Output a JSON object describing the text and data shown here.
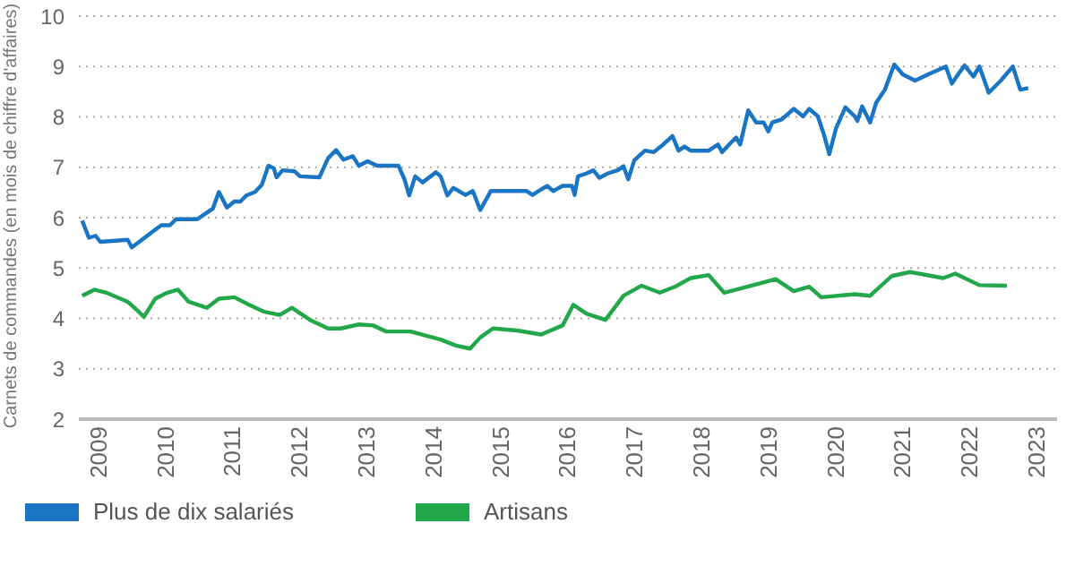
{
  "chart_data": {
    "type": "line",
    "ylabel": "Carnets de commandes (en mois de chiffre d'affaires)",
    "xlim": [
      2008.7,
      2023.3
    ],
    "xticks": [
      2009,
      2010,
      2011,
      2012,
      2013,
      2014,
      2015,
      2016,
      2017,
      2018,
      2019,
      2020,
      2021,
      2022,
      2023
    ],
    "ylim": [
      2,
      10
    ],
    "yticks": [
      2,
      3,
      4,
      5,
      6,
      7,
      8,
      9,
      10
    ],
    "grid": "y",
    "legend": "bottom left",
    "marker": "none",
    "line_style": "solid",
    "series": [
      {
        "name": "Plus de dix salariés",
        "color": "#1a75c4",
        "x": [
          2008.75,
          2008.85,
          2008.95,
          2009.02,
          2009.43,
          2009.49,
          2009.61,
          2009.93,
          2010.06,
          2010.15,
          2010.47,
          2010.7,
          2010.79,
          2010.91,
          2011.02,
          2011.11,
          2011.2,
          2011.33,
          2011.43,
          2011.53,
          2011.61,
          2011.65,
          2011.74,
          2011.92,
          2012.0,
          2012.29,
          2012.42,
          2012.54,
          2012.65,
          2012.79,
          2012.88,
          2013.01,
          2013.15,
          2013.47,
          2013.56,
          2013.63,
          2013.72,
          2013.83,
          2014.03,
          2014.1,
          2014.2,
          2014.29,
          2014.47,
          2014.58,
          2014.69,
          2014.85,
          2015.38,
          2015.47,
          2015.6,
          2015.69,
          2015.78,
          2015.92,
          2016.06,
          2016.1,
          2016.15,
          2016.28,
          2016.38,
          2016.47,
          2016.6,
          2016.74,
          2016.83,
          2016.9,
          2016.99,
          2017.15,
          2017.28,
          2017.42,
          2017.56,
          2017.65,
          2017.74,
          2017.83,
          2018.1,
          2018.24,
          2018.3,
          2018.42,
          2018.51,
          2018.57,
          2018.69,
          2018.81,
          2018.92,
          2018.99,
          2019.05,
          2019.19,
          2019.37,
          2019.51,
          2019.6,
          2019.73,
          2019.82,
          2019.9,
          2020.0,
          2020.14,
          2020.28,
          2020.32,
          2020.39,
          2020.51,
          2020.6,
          2020.73,
          2020.87,
          2021.0,
          2021.18,
          2021.37,
          2021.64,
          2021.73,
          2021.82,
          2021.92,
          2022.05,
          2022.14,
          2022.28,
          2022.46,
          2022.64,
          2022.75,
          2022.87
        ],
        "values": [
          5.94,
          5.6,
          5.64,
          5.52,
          5.56,
          5.41,
          5.53,
          5.85,
          5.85,
          5.97,
          5.97,
          6.18,
          6.51,
          6.2,
          6.32,
          6.32,
          6.44,
          6.51,
          6.65,
          7.03,
          6.98,
          6.8,
          6.94,
          6.92,
          6.82,
          6.8,
          7.18,
          7.34,
          7.15,
          7.22,
          7.03,
          7.12,
          7.03,
          7.03,
          6.76,
          6.44,
          6.82,
          6.7,
          6.9,
          6.82,
          6.44,
          6.59,
          6.45,
          6.53,
          6.15,
          6.53,
          6.53,
          6.45,
          6.56,
          6.63,
          6.53,
          6.63,
          6.63,
          6.45,
          6.82,
          6.88,
          6.94,
          6.79,
          6.88,
          6.94,
          7.02,
          6.76,
          7.14,
          7.33,
          7.3,
          7.45,
          7.62,
          7.33,
          7.41,
          7.33,
          7.33,
          7.45,
          7.3,
          7.47,
          7.59,
          7.45,
          8.13,
          7.89,
          7.89,
          7.71,
          7.89,
          7.95,
          8.16,
          8.01,
          8.16,
          8.01,
          7.65,
          7.26,
          7.77,
          8.19,
          8.01,
          7.92,
          8.21,
          7.89,
          8.28,
          8.54,
          9.04,
          8.84,
          8.72,
          8.84,
          9.0,
          8.66,
          8.84,
          9.02,
          8.8,
          9.0,
          8.48,
          8.72,
          9.0,
          8.54,
          8.57
        ]
      },
      {
        "name": "Artisans",
        "color": "#22a84a",
        "x": [
          2008.75,
          2008.93,
          2009.11,
          2009.43,
          2009.58,
          2009.67,
          2009.84,
          2010.02,
          2010.18,
          2010.34,
          2010.61,
          2010.79,
          2011.02,
          2011.24,
          2011.47,
          2011.7,
          2011.88,
          2012.15,
          2012.42,
          2012.61,
          2012.88,
          2013.09,
          2013.29,
          2013.65,
          2014.1,
          2014.33,
          2014.54,
          2014.69,
          2014.88,
          2015.24,
          2015.6,
          2015.92,
          2016.08,
          2016.28,
          2016.56,
          2016.83,
          2017.1,
          2017.37,
          2017.6,
          2017.83,
          2018.1,
          2018.33,
          2018.74,
          2019.1,
          2019.37,
          2019.6,
          2019.78,
          2020.28,
          2020.51,
          2020.83,
          2021.1,
          2021.6,
          2021.78,
          2022.14,
          2022.55
        ],
        "values": [
          4.45,
          4.57,
          4.51,
          4.33,
          4.15,
          4.03,
          4.39,
          4.51,
          4.57,
          4.33,
          4.21,
          4.39,
          4.42,
          4.27,
          4.13,
          4.07,
          4.21,
          3.97,
          3.8,
          3.8,
          3.88,
          3.86,
          3.74,
          3.74,
          3.58,
          3.46,
          3.4,
          3.62,
          3.8,
          3.76,
          3.68,
          3.86,
          4.27,
          4.09,
          3.97,
          4.45,
          4.65,
          4.51,
          4.63,
          4.8,
          4.86,
          4.51,
          4.65,
          4.78,
          4.54,
          4.63,
          4.42,
          4.48,
          4.45,
          4.84,
          4.92,
          4.8,
          4.89,
          4.66,
          4.65
        ]
      }
    ]
  }
}
